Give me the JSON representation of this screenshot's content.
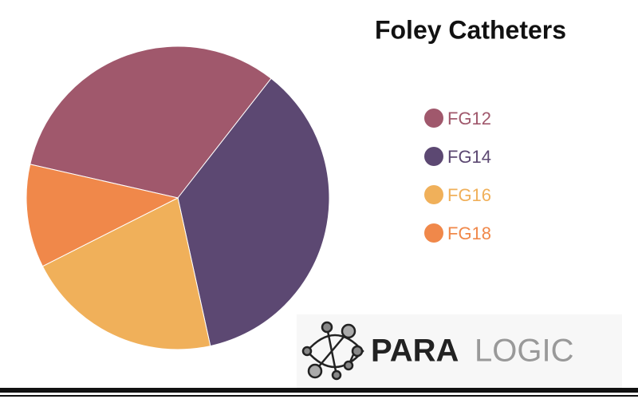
{
  "chart_data": {
    "type": "pie",
    "title": "Foley Catheters",
    "categories": [
      "FG12",
      "FG14",
      "FG16",
      "FG18"
    ],
    "values": [
      32,
      36,
      21,
      11
    ],
    "colors": [
      "#a0586c",
      "#5c4872",
      "#f0b05a",
      "#f0884a"
    ]
  },
  "logo": {
    "left": "PARA",
    "right": "LOGIC"
  }
}
